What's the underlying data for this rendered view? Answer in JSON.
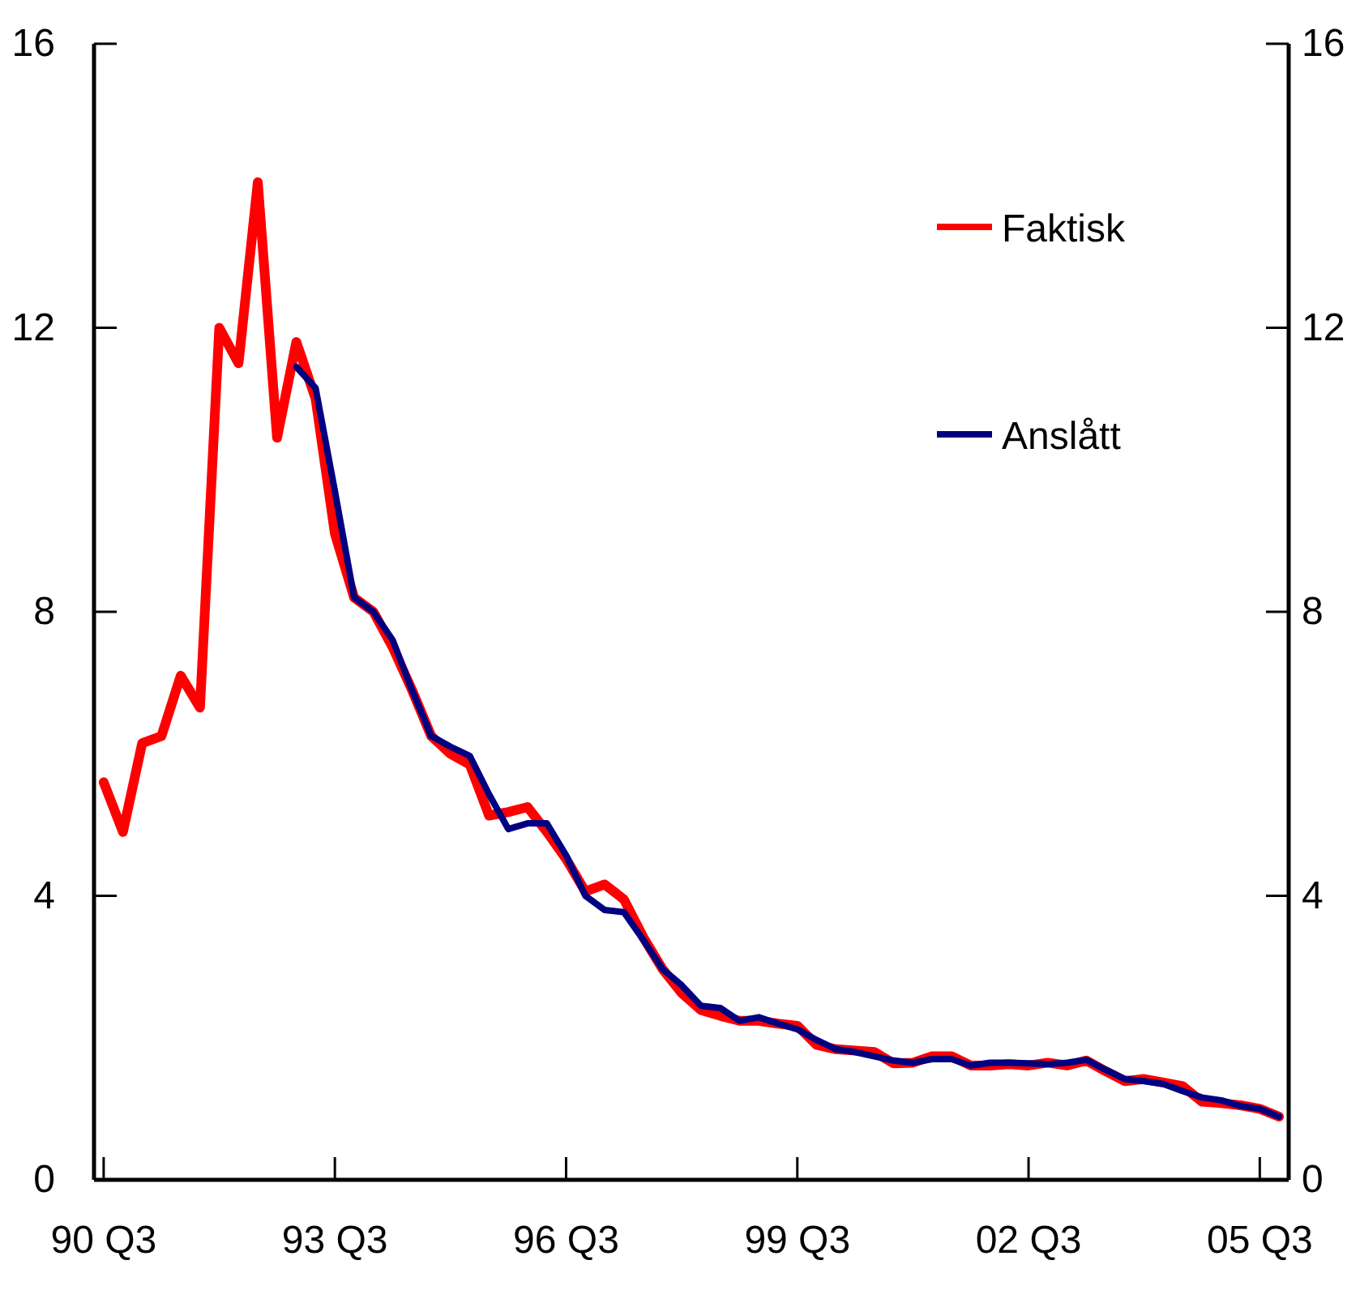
{
  "chart_data": {
    "type": "line",
    "categories": [
      "90 Q3",
      null,
      null,
      null,
      null,
      null,
      null,
      null,
      null,
      null,
      null,
      null,
      "93 Q3",
      null,
      null,
      null,
      null,
      null,
      null,
      null,
      null,
      null,
      null,
      null,
      "96 Q3",
      null,
      null,
      null,
      null,
      null,
      null,
      null,
      null,
      null,
      null,
      null,
      "99 Q3",
      null,
      null,
      null,
      null,
      null,
      null,
      null,
      null,
      null,
      null,
      null,
      "02 Q3",
      null,
      null,
      null,
      null,
      null,
      null,
      null,
      null,
      null,
      null,
      null,
      "05 Q3",
      null
    ],
    "series": [
      {
        "name": "Faktisk",
        "color": "#ff0000",
        "values": [
          5.6,
          4.9,
          6.15,
          6.25,
          7.1,
          6.65,
          12.0,
          11.5,
          14.05,
          10.45,
          11.8,
          11.0,
          9.1,
          8.2,
          8.0,
          7.5,
          6.9,
          6.25,
          6.0,
          5.85,
          5.13,
          5.18,
          5.25,
          4.9,
          4.52,
          4.06,
          4.16,
          3.95,
          3.42,
          2.97,
          2.63,
          2.39,
          2.31,
          2.24,
          2.24,
          2.2,
          2.17,
          1.9,
          1.84,
          1.82,
          1.8,
          1.64,
          1.65,
          1.74,
          1.74,
          1.61,
          1.61,
          1.63,
          1.61,
          1.65,
          1.61,
          1.68,
          1.53,
          1.39,
          1.42,
          1.37,
          1.32,
          1.1,
          1.08,
          1.05,
          1.0,
          0.89
        ]
      },
      {
        "name": "Anslått",
        "color": "#000080",
        "values": [
          null,
          null,
          null,
          null,
          null,
          null,
          null,
          null,
          null,
          null,
          11.45,
          11.15,
          9.7,
          8.2,
          8.0,
          7.6,
          6.9,
          6.25,
          6.1,
          5.97,
          5.43,
          4.94,
          5.02,
          5.02,
          4.57,
          4.0,
          3.8,
          3.77,
          3.38,
          2.97,
          2.74,
          2.45,
          2.42,
          2.24,
          2.29,
          2.2,
          2.12,
          1.97,
          1.84,
          1.8,
          1.74,
          1.68,
          1.65,
          1.7,
          1.7,
          1.61,
          1.65,
          1.65,
          1.64,
          1.63,
          1.65,
          1.69,
          1.55,
          1.42,
          1.39,
          1.35,
          1.25,
          1.16,
          1.12,
          1.04,
          1.0,
          0.89
        ]
      }
    ],
    "ylim": [
      0,
      16
    ],
    "yticks": [
      0,
      4,
      8,
      12,
      16
    ],
    "y2lim": [
      0,
      16
    ],
    "y2ticks": [
      0,
      4,
      8,
      12,
      16
    ],
    "grid": false,
    "legend": "top right",
    "marker": "none",
    "line_style": "solid"
  }
}
